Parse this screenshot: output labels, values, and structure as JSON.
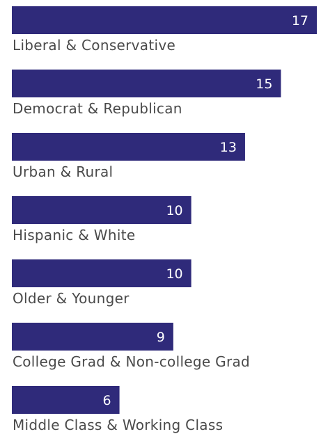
{
  "chart_data": {
    "type": "bar",
    "orientation": "horizontal",
    "categories": [
      "Liberal & Conservative",
      "Democrat & Republican",
      "Urban & Rural",
      "Hispanic & White",
      "Older & Younger",
      "College Grad & Non-college Grad",
      "Middle Class & Working Class"
    ],
    "values": [
      17,
      15,
      13,
      10,
      10,
      9,
      6
    ],
    "title": "",
    "xlabel": "",
    "ylabel": "",
    "xlim": [
      0,
      17
    ],
    "grid": false,
    "bar_color": "#2f2a7a",
    "value_label_color": "#ffffff",
    "category_label_color": "#4a4a4a"
  }
}
